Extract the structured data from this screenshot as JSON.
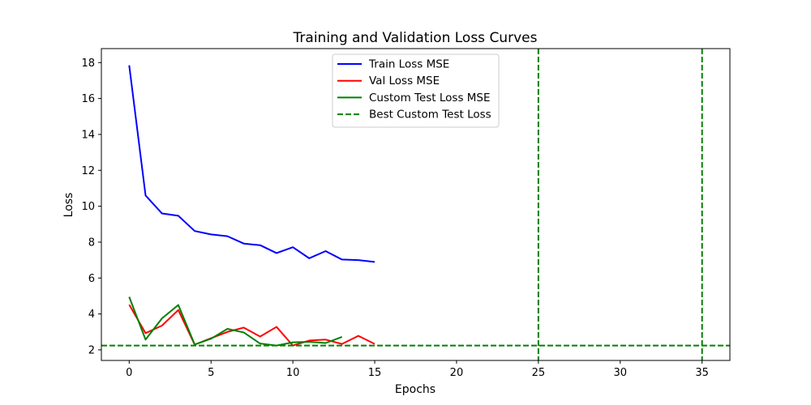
{
  "chart_data": {
    "type": "line",
    "title": "Training and Validation Loss Curves",
    "xlabel": "Epochs",
    "ylabel": "Loss",
    "xlim": [
      -1.7,
      36.7
    ],
    "ylim": [
      1.41,
      18.78
    ],
    "xticks": [
      0,
      5,
      10,
      15,
      20,
      25,
      30,
      35
    ],
    "yticks": [
      2,
      4,
      6,
      8,
      10,
      12,
      14,
      16,
      18
    ],
    "grid": false,
    "legend_position": "upper center",
    "series": [
      {
        "name": "Train Loss MSE",
        "color": "#0000ff",
        "style": "solid",
        "x": [
          0,
          1,
          2,
          3,
          4,
          5,
          6,
          7,
          8,
          9,
          10,
          11,
          12,
          13,
          14,
          15
        ],
        "y": [
          17.85,
          10.6,
          9.6,
          9.47,
          8.62,
          8.43,
          8.33,
          7.92,
          7.83,
          7.39,
          7.72,
          7.1,
          7.5,
          7.03,
          7.0,
          6.9
        ]
      },
      {
        "name": "Val Loss MSE",
        "color": "#ff0000",
        "style": "solid",
        "x": [
          0,
          1,
          2,
          3,
          4,
          5,
          6,
          7,
          8,
          9,
          10,
          11,
          12,
          13,
          14,
          15
        ],
        "y": [
          4.52,
          2.93,
          3.35,
          4.22,
          2.29,
          2.65,
          3.0,
          3.24,
          2.74,
          3.28,
          2.24,
          2.52,
          2.57,
          2.33,
          2.78,
          2.33
        ]
      },
      {
        "name": "Custom Test Loss MSE",
        "color": "#008000",
        "style": "solid",
        "x": [
          0,
          1,
          2,
          3,
          4,
          5,
          6,
          7,
          8,
          9,
          10,
          11,
          12,
          13
        ],
        "y": [
          4.95,
          2.57,
          3.75,
          4.5,
          2.3,
          2.62,
          3.17,
          2.97,
          2.35,
          2.24,
          2.42,
          2.45,
          2.38,
          2.72
        ]
      },
      {
        "name": "Best Custom Test Loss",
        "color": "#008000",
        "style": "dashed",
        "hline": 2.24
      }
    ],
    "vlines": [
      {
        "x": 25,
        "color": "#008000",
        "style": "dashed"
      },
      {
        "x": 35,
        "color": "#008000",
        "style": "dashed"
      }
    ]
  }
}
